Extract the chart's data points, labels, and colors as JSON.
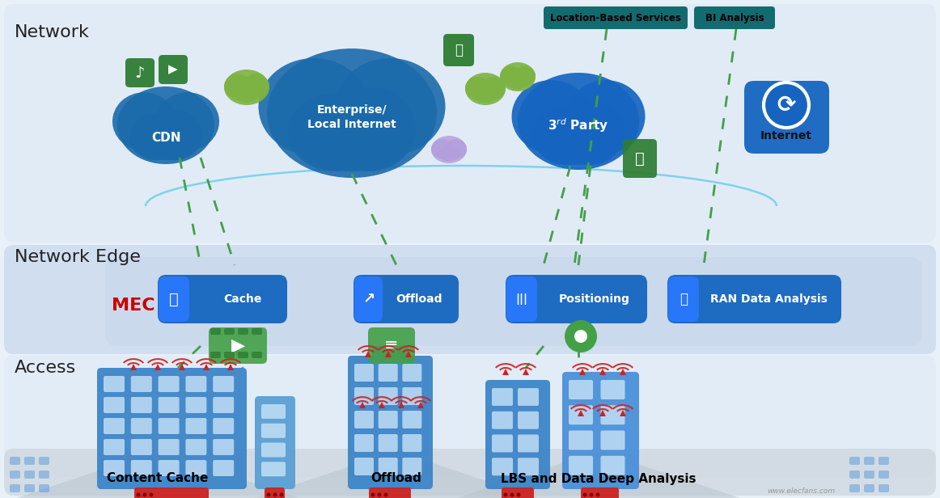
{
  "bg_color": "#e8f0f8",
  "network_section_color": "#dce8f5",
  "edge_section_color": "#c8daea",
  "access_section_color": "#dce8f5",
  "bottom_color": "#cdd5db",
  "dark_blue_cloud": "#1a6aab",
  "button_blue": "#1565c0",
  "teal_tag": "#00838f",
  "green_icon": "#2e7d32",
  "green_light": "#43a047",
  "red_accent": "#cc0000",
  "white": "#ffffff",
  "section_labels": [
    "Network",
    "Network Edge",
    "Access"
  ],
  "top_tags": [
    "Location-Based Services",
    "BI Analysis"
  ],
  "mec_buttons": [
    "Cache",
    "Offload",
    "Positioning",
    "RAN Data Analysis"
  ],
  "bottom_labels": [
    "Content Cache",
    "Offload",
    "LBS and Data Deep Analysis"
  ],
  "watermark": "www.elecfans.com"
}
